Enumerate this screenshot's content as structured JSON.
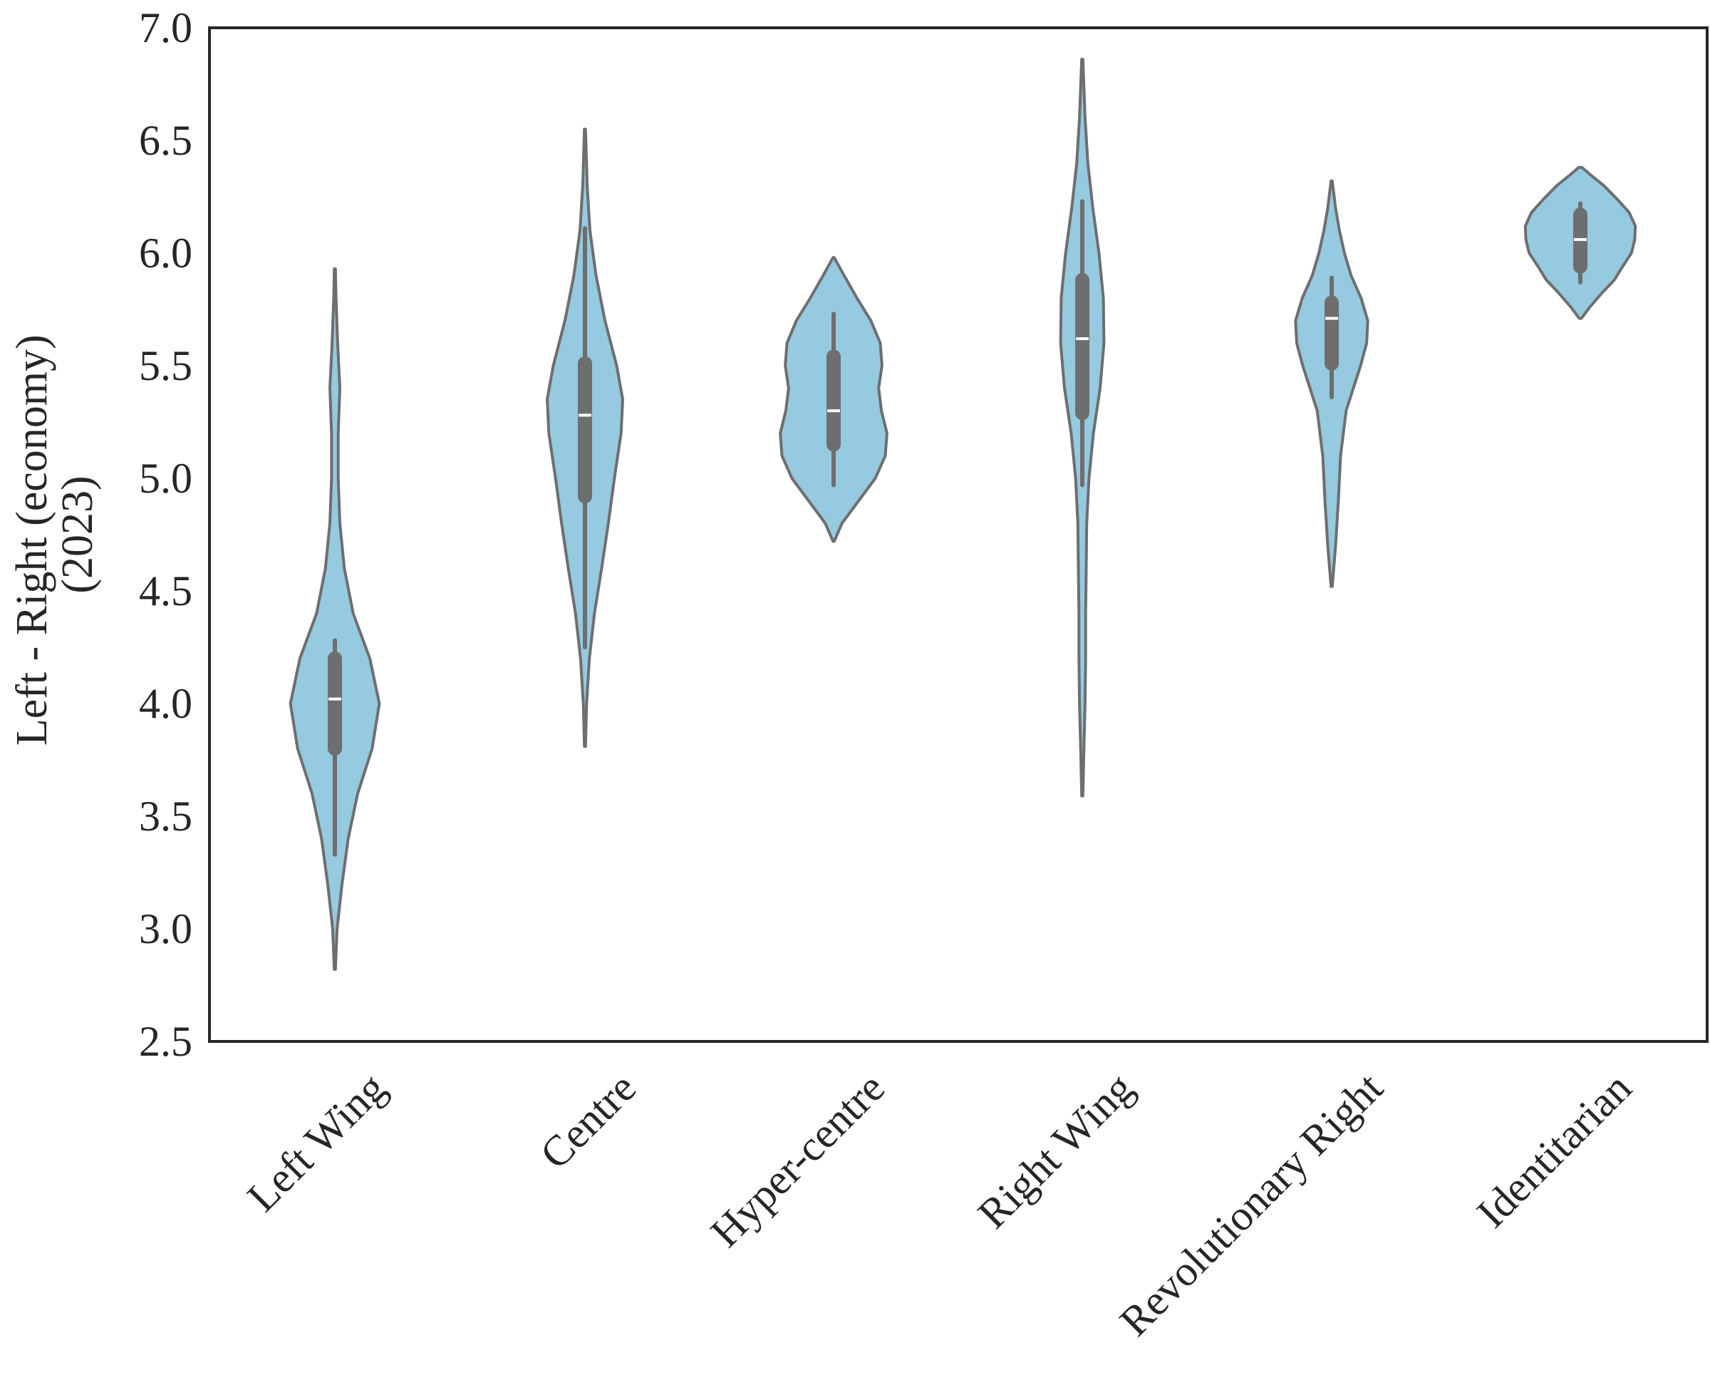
{
  "chart_data": {
    "type": "violin",
    "title": "",
    "xlabel": "",
    "ylabel_lines": [
      "Left - Right (economy)",
      "(2023)"
    ],
    "ylim": [
      2.5,
      7.0
    ],
    "yticks": [
      "2.5",
      "3.0",
      "3.5",
      "4.0",
      "4.5",
      "5.0",
      "5.5",
      "6.0",
      "6.5",
      "7.0"
    ],
    "grid": false,
    "colors": {
      "fill": "#95cae0",
      "edge": "#6e6e6e",
      "box": "#6e6e6e",
      "median": "#ffffff",
      "frame": "#262626"
    },
    "categories": [
      "Left Wing",
      "Centre",
      "Hyper-centre",
      "Right Wing",
      "Revolutionary Right",
      "Identitarian"
    ],
    "series": [
      {
        "name": "Left Wing",
        "min": 2.82,
        "max": 5.93,
        "q1": 3.8,
        "median": 4.02,
        "q3": 4.2,
        "whisker_low": 3.33,
        "whisker_high": 4.28,
        "density": [
          [
            2.82,
            0.01
          ],
          [
            3.0,
            0.04
          ],
          [
            3.2,
            0.13
          ],
          [
            3.4,
            0.24
          ],
          [
            3.6,
            0.41
          ],
          [
            3.8,
            0.67
          ],
          [
            4.0,
            0.8
          ],
          [
            4.2,
            0.63
          ],
          [
            4.4,
            0.33
          ],
          [
            4.6,
            0.17
          ],
          [
            4.8,
            0.09
          ],
          [
            5.0,
            0.06
          ],
          [
            5.2,
            0.06
          ],
          [
            5.4,
            0.09
          ],
          [
            5.6,
            0.05
          ],
          [
            5.8,
            0.02
          ],
          [
            5.93,
            0.01
          ]
        ]
      },
      {
        "name": "Centre",
        "min": 3.81,
        "max": 6.55,
        "q1": 4.92,
        "median": 5.28,
        "q3": 5.51,
        "whisker_low": 4.25,
        "whisker_high": 6.11,
        "density": [
          [
            3.81,
            0.01
          ],
          [
            4.0,
            0.03
          ],
          [
            4.2,
            0.08
          ],
          [
            4.4,
            0.17
          ],
          [
            4.6,
            0.3
          ],
          [
            4.8,
            0.42
          ],
          [
            5.0,
            0.53
          ],
          [
            5.2,
            0.65
          ],
          [
            5.35,
            0.68
          ],
          [
            5.5,
            0.57
          ],
          [
            5.7,
            0.36
          ],
          [
            5.9,
            0.2
          ],
          [
            6.1,
            0.09
          ],
          [
            6.3,
            0.04
          ],
          [
            6.55,
            0.01
          ]
        ]
      },
      {
        "name": "Hyper-centre",
        "min": 4.72,
        "max": 5.98,
        "q1": 5.15,
        "median": 5.3,
        "q3": 5.54,
        "whisker_low": 4.97,
        "whisker_high": 5.73,
        "density": [
          [
            4.72,
            0.01
          ],
          [
            4.8,
            0.15
          ],
          [
            4.9,
            0.45
          ],
          [
            5.0,
            0.75
          ],
          [
            5.1,
            0.93
          ],
          [
            5.2,
            0.96
          ],
          [
            5.3,
            0.86
          ],
          [
            5.4,
            0.81
          ],
          [
            5.5,
            0.87
          ],
          [
            5.6,
            0.84
          ],
          [
            5.7,
            0.67
          ],
          [
            5.8,
            0.42
          ],
          [
            5.9,
            0.19
          ],
          [
            5.98,
            0.01
          ]
        ]
      },
      {
        "name": "Right Wing",
        "min": 3.59,
        "max": 6.86,
        "q1": 5.29,
        "median": 5.62,
        "q3": 5.88,
        "whisker_low": 4.97,
        "whisker_high": 6.23,
        "density": [
          [
            3.59,
            0.01
          ],
          [
            3.8,
            0.03
          ],
          [
            4.0,
            0.05
          ],
          [
            4.2,
            0.06
          ],
          [
            4.4,
            0.06
          ],
          [
            4.6,
            0.07
          ],
          [
            4.8,
            0.08
          ],
          [
            5.0,
            0.12
          ],
          [
            5.2,
            0.2
          ],
          [
            5.4,
            0.32
          ],
          [
            5.6,
            0.39
          ],
          [
            5.8,
            0.38
          ],
          [
            6.0,
            0.3
          ],
          [
            6.2,
            0.19
          ],
          [
            6.4,
            0.1
          ],
          [
            6.6,
            0.05
          ],
          [
            6.86,
            0.01
          ]
        ]
      },
      {
        "name": "Revolutionary Right",
        "min": 4.52,
        "max": 6.32,
        "q1": 5.51,
        "median": 5.71,
        "q3": 5.78,
        "whisker_low": 5.36,
        "whisker_high": 5.89,
        "density": [
          [
            4.52,
            0.01
          ],
          [
            4.7,
            0.07
          ],
          [
            4.9,
            0.12
          ],
          [
            5.1,
            0.16
          ],
          [
            5.3,
            0.26
          ],
          [
            5.5,
            0.52
          ],
          [
            5.6,
            0.63
          ],
          [
            5.7,
            0.65
          ],
          [
            5.8,
            0.53
          ],
          [
            5.9,
            0.35
          ],
          [
            6.0,
            0.23
          ],
          [
            6.1,
            0.14
          ],
          [
            6.2,
            0.07
          ],
          [
            6.32,
            0.01
          ]
        ]
      },
      {
        "name": "Identitarian",
        "min": 5.71,
        "max": 6.38,
        "q1": 5.94,
        "median": 6.06,
        "q3": 6.17,
        "whisker_low": 5.87,
        "whisker_high": 6.22,
        "density": [
          [
            5.71,
            0.02
          ],
          [
            5.76,
            0.17
          ],
          [
            5.82,
            0.38
          ],
          [
            5.88,
            0.61
          ],
          [
            5.94,
            0.76
          ],
          [
            6.0,
            0.92
          ],
          [
            6.06,
            0.98
          ],
          [
            6.12,
            0.99
          ],
          [
            6.18,
            0.88
          ],
          [
            6.24,
            0.66
          ],
          [
            6.3,
            0.42
          ],
          [
            6.35,
            0.17
          ],
          [
            6.38,
            0.03
          ]
        ]
      }
    ]
  }
}
